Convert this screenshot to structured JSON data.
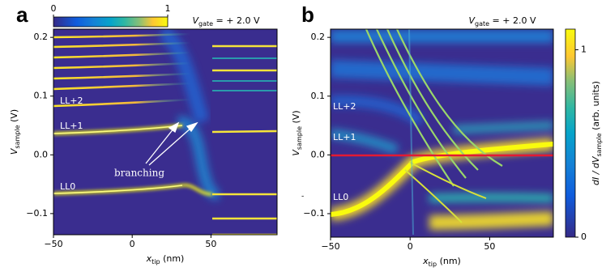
{
  "chart_data": [
    {
      "type": "heatmap",
      "panel_label": "a",
      "annotation": {
        "symbol": "V",
        "subscript": "gate",
        "text": " = + 2.0 V"
      },
      "x_label": {
        "symbol": "x",
        "subscript": "tip",
        "text": " (nm)"
      },
      "y_label": {
        "symbol": "V",
        "subscript": "sample",
        "text": " (V)"
      },
      "xlim": [
        -50,
        92
      ],
      "xticks": [
        {
          "value": -50,
          "label": "−50"
        },
        0,
        50
      ],
      "ylim": [
        -0.136,
        0.214
      ],
      "yticks": [
        {
          "value": -0.1,
          "label": "−0.1"
        },
        {
          "value": 0,
          "label": "0.0"
        },
        0.1,
        0.2
      ],
      "level_labels": [
        "LL+2",
        "LL+1",
        "LL0"
      ],
      "arrow_label": "branching",
      "colorbar": {
        "orientation": "horizontal",
        "clim": [
          0,
          1
        ],
        "ticks": [
          0,
          1
        ]
      }
    },
    {
      "type": "heatmap",
      "panel_label": "b",
      "annotation": {
        "symbol": "V",
        "subscript": "gate",
        "text": " = + 2.0 V"
      },
      "x_label": {
        "symbol": "x",
        "subscript": "tip",
        "text": " (nm)"
      },
      "y_label": {
        "symbol": "V",
        "subscript": "sample",
        "text": " (V)"
      },
      "xlim": [
        -50,
        90
      ],
      "xticks": [
        {
          "value": -50,
          "label": "−50"
        },
        0,
        50
      ],
      "ylim": [
        -0.14,
        0.214
      ],
      "yticks": [
        {
          "value": -0.1,
          "label": "−0.1"
        },
        {
          "value": 0,
          "label": "0.0"
        },
        0.1,
        0.2
      ],
      "level_labels": [
        "LL+2",
        "LL+1",
        "LL0"
      ],
      "colorbar": {
        "orientation": "vertical",
        "clim": [
          0,
          1.11
        ],
        "ticks": [
          0,
          1
        ],
        "label": {
          "prefix": "dI / dV",
          "subscript": "sample",
          "text": " (arb. units)"
        }
      }
    }
  ]
}
